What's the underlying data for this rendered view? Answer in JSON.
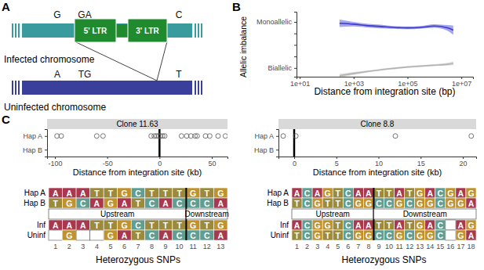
{
  "panel_labels": [
    "A",
    "B",
    "C"
  ],
  "diagram": {
    "infected_label": "Infected chromosome",
    "uninfected_label": "Uninfected chromosome",
    "ltr5": "5' LTR",
    "ltr3": "3' LTR",
    "infected_snps": [
      "G",
      "GA",
      "C"
    ],
    "uninfected_snps": [
      "A",
      "TG",
      "T"
    ]
  },
  "chart_data": [
    {
      "type": "line",
      "log": "x",
      "grid": false,
      "xlabel": "Distance from integration site (bp)",
      "ylabel": "Allelic imbalance",
      "xlim": [
        7.6,
        27000000
      ],
      "xticks": [
        {
          "value": 10,
          "label": "1e+01"
        },
        {
          "value": 1000,
          "label": "1e+03"
        },
        {
          "value": 100000,
          "label": "1e+05"
        },
        {
          "value": 10000000,
          "label": "1e+07"
        }
      ],
      "ylim": [
        -0.19,
        1.22
      ],
      "yticks": [
        {
          "value": 0,
          "label": "Biallelic"
        },
        {
          "value": 0.25,
          "label": null
        },
        {
          "value": 0.5,
          "label": null
        },
        {
          "value": 0.75,
          "label": null
        },
        {
          "value": 1,
          "label": "Monoallelic"
        }
      ],
      "x": [
        300,
        1000,
        3000,
        10000,
        30000,
        100000,
        300000,
        1000000,
        3000000,
        5000000
      ],
      "series": [
        {
          "color": "#3a3ad0",
          "values": [
            0.97,
            0.95,
            0.92,
            0.9,
            0.88,
            0.87,
            0.88,
            0.91,
            0.87,
            0.82
          ],
          "lower": [
            0.89,
            0.9,
            0.88,
            0.86,
            0.85,
            0.84,
            0.85,
            0.87,
            0.81,
            0.72
          ],
          "upper": [
            1.05,
            1.0,
            0.96,
            0.94,
            0.91,
            0.9,
            0.91,
            0.95,
            0.93,
            0.92
          ]
        },
        {
          "color": "#b3b3b3",
          "values": [
            -0.17,
            -0.12,
            -0.08,
            -0.04,
            -0.01,
            0.02,
            0.04,
            0.06,
            0.08,
            0.1
          ],
          "lower": [
            -0.21,
            -0.15,
            -0.1,
            -0.06,
            -0.03,
            0.0,
            0.02,
            0.04,
            0.05,
            0.06
          ],
          "upper": [
            -0.13,
            -0.09,
            -0.06,
            -0.02,
            0.01,
            0.04,
            0.06,
            0.08,
            0.11,
            0.14
          ]
        }
      ]
    },
    {
      "type": "scatter",
      "marker": "circle",
      "title": "Clone 11.63",
      "xlabel": "Distance from integration site (kb)",
      "xlim": [
        -107.5,
        65
      ],
      "xticks": [
        -100,
        -50,
        0,
        50
      ],
      "categories": [
        "Hap A",
        "Hap B"
      ],
      "integration_site": 0,
      "series": [
        {
          "category": "Hap A",
          "x": [
            -98,
            -94,
            -60,
            -54,
            -8,
            -5,
            -3,
            -1,
            1,
            3,
            5,
            21,
            26,
            30,
            34,
            36,
            44,
            48,
            56,
            63
          ]
        },
        {
          "category": "Hap B",
          "x": []
        }
      ]
    },
    {
      "type": "scatter",
      "marker": "circle",
      "title": "Clone 8.8",
      "xlabel": "Distance from integration site (kb)",
      "xlim": [
        -1.86,
        21.58
      ],
      "xticks": [
        0,
        5,
        10,
        15,
        20
      ],
      "categories": [
        "Hap A",
        "Hap B"
      ],
      "integration_site": 0,
      "series": [
        {
          "category": "Hap A",
          "x": [
            -1.3,
            0.2,
            12,
            21
          ]
        },
        {
          "category": "Hap B",
          "x": []
        }
      ]
    }
  ],
  "base_colors": {
    "A": "#a8384d",
    "C": "#5f9e90",
    "G": "#c0922e",
    "T": "#9c8a3c"
  },
  "snp_tables": [
    {
      "haplotypes": [
        {
          "label": "Hap A",
          "bases": [
            "A",
            "A",
            "A",
            "T",
            "T",
            "G",
            "C",
            "T",
            "T",
            "T",
            "G",
            "T",
            "G"
          ]
        },
        {
          "label": "Hap B",
          "bases": [
            "T",
            "G",
            "C",
            "A",
            "G",
            "A",
            "T",
            "C",
            "A",
            "C",
            "C",
            "C",
            "A"
          ]
        }
      ],
      "regions": [
        {
          "label": "Upstream",
          "snps": 10
        },
        {
          "label": "Downstream",
          "snps": 3
        }
      ],
      "chromosomes": [
        {
          "label": "Inf",
          "bases": [
            "A",
            "A",
            "A",
            "T",
            "T",
            "G",
            "C",
            "T",
            "T",
            "T",
            "G",
            "T",
            "G"
          ]
        },
        {
          "label": "Uninf",
          "bases": [
            null,
            "G",
            null,
            null,
            "G",
            "A",
            "T",
            "C",
            "A",
            "C",
            "C",
            "C",
            "A"
          ]
        }
      ],
      "snp_numbers": [
        1,
        2,
        3,
        4,
        5,
        6,
        7,
        8,
        9,
        10,
        11,
        12,
        13
      ],
      "xlabel": "Heterozygous SNPs"
    },
    {
      "haplotypes": [
        {
          "label": "Hap A",
          "bases": [
            "A",
            "C",
            "A",
            "G",
            "T",
            "C",
            "A",
            "A",
            "T",
            "T",
            "A",
            "T",
            "G",
            "A",
            "C",
            "G",
            "A",
            "G"
          ]
        },
        {
          "label": "Hap B",
          "bases": [
            "T",
            "C",
            "G",
            "T",
            "T",
            "C",
            "G",
            "G",
            "C",
            "C",
            "G",
            "C",
            "G",
            "G",
            "C",
            "G",
            "G",
            "A"
          ]
        }
      ],
      "regions": [
        {
          "label": "Upstream",
          "snps": 8
        },
        {
          "label": "Downstream",
          "snps": 10
        }
      ],
      "chromosomes": [
        {
          "label": "Inf",
          "bases": [
            "A",
            "C",
            "G",
            "G",
            "T",
            "C",
            "A",
            "A",
            "T",
            "T",
            "A",
            "T",
            "G",
            "A",
            "C",
            null,
            "A",
            "G"
          ]
        },
        {
          "label": "Uninf",
          "bases": [
            "T",
            "C",
            "G",
            "T",
            "T",
            "C",
            "G",
            "G",
            "C",
            "C",
            "G",
            "C",
            "G",
            "G",
            "C",
            null,
            "G",
            "A"
          ]
        }
      ],
      "snp_numbers": [
        1,
        2,
        3,
        4,
        5,
        6,
        7,
        8,
        9,
        10,
        11,
        12,
        13,
        14,
        15,
        16,
        17,
        18
      ],
      "xlabel": "Heterozygous SNPs"
    }
  ]
}
